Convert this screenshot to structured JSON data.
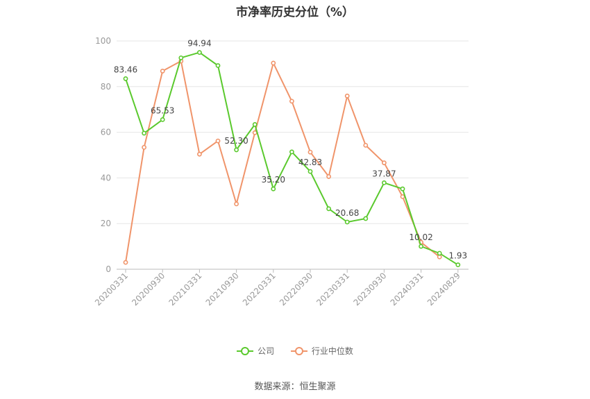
{
  "chart_data": {
    "type": "line",
    "title": "市净率历史分位（%）",
    "x": [
      "20200331",
      "20200630",
      "20200930",
      "20201231",
      "20210331",
      "20210630",
      "20210930",
      "20211231",
      "20220331",
      "20220630",
      "20220930",
      "20221231",
      "20230331",
      "20230630",
      "20230930",
      "20231231",
      "20240331",
      "20240630",
      "20240829"
    ],
    "x_tick_labels": [
      "20200331",
      "20200930",
      "20210331",
      "20210930",
      "20220331",
      "20220930",
      "20230331",
      "20230930",
      "20240331",
      "20240829"
    ],
    "ylim": [
      0,
      100
    ],
    "y_ticks": [
      0,
      20,
      40,
      60,
      80,
      100
    ],
    "grid": true,
    "legend_position": "bottom",
    "series": [
      {
        "name": "公司",
        "color": "#5ac92d",
        "values": [
          83.46,
          59.6,
          65.53,
          92.6,
          94.94,
          89.2,
          52.3,
          63.4,
          35.2,
          51.4,
          42.83,
          26.5,
          20.68,
          22.2,
          37.87,
          35.2,
          10.02,
          7.0,
          1.93
        ],
        "data_labels": {
          "0": "83.46",
          "2": "65.53",
          "4": "94.94",
          "6": "52.30",
          "8": "35.20",
          "10": "42.83",
          "12": "20.68",
          "14": "37.87",
          "16": "10.02",
          "18": "1.93"
        }
      },
      {
        "name": "行业中位数",
        "color": "#f0946a",
        "values": [
          3.0,
          53.4,
          86.8,
          91.2,
          50.4,
          56.2,
          28.6,
          59.8,
          90.3,
          73.6,
          51.3,
          40.6,
          75.9,
          54.3,
          46.6,
          31.8,
          11.8,
          5.4,
          null
        ]
      }
    ]
  },
  "source": "数据来源：恒生聚源"
}
